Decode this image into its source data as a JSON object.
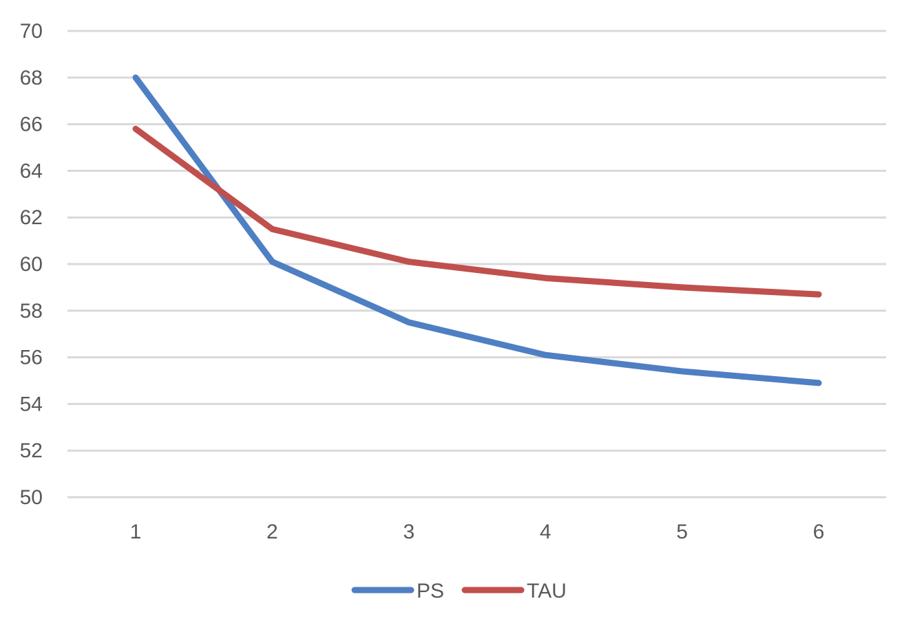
{
  "chart_data": {
    "type": "line",
    "title": "",
    "xlabel": "",
    "ylabel": "",
    "categories": [
      "1",
      "2",
      "3",
      "4",
      "5",
      "6"
    ],
    "ylim": [
      50,
      70
    ],
    "yticks": [
      50,
      52,
      54,
      56,
      58,
      60,
      62,
      64,
      66,
      68,
      70
    ],
    "grid": true,
    "legend_position": "bottom",
    "series": [
      {
        "name": "PS",
        "color": "#4f7fc3",
        "values": [
          68.0,
          60.1,
          57.5,
          56.1,
          55.4,
          54.9
        ]
      },
      {
        "name": "TAU",
        "color": "#c0504d",
        "values": [
          65.8,
          61.5,
          60.1,
          59.4,
          59.0,
          58.7
        ]
      }
    ]
  }
}
